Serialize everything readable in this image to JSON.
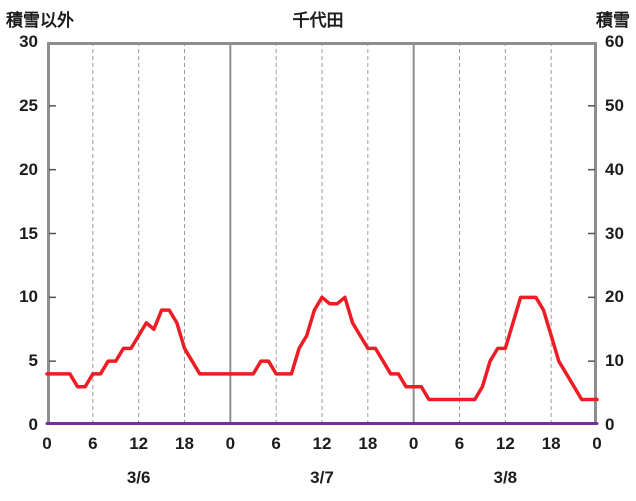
{
  "header": {
    "left_axis_title": "積雪以外",
    "chart_title": "千代田",
    "right_axis_title": "積雪"
  },
  "colors": {
    "background": "#ffffff",
    "frame": "#8e8e8e",
    "grid_dashed": "#9b9b9b",
    "tick": "#555555",
    "text": "#1c1c1c",
    "series_other": "#ee1c25",
    "series_snow": "#7030a0"
  },
  "chart_data": {
    "type": "line",
    "title": "千代田",
    "x_axis": {
      "span_hours": 72,
      "tick_hours": [
        0,
        6,
        12,
        18,
        24,
        30,
        36,
        42,
        48,
        54,
        60,
        66,
        72
      ],
      "tick_labels": [
        "0",
        "6",
        "12",
        "18",
        "0",
        "6",
        "12",
        "18",
        "0",
        "6",
        "12",
        "18",
        "0"
      ],
      "day_boundary_hours": [
        24,
        48
      ],
      "day_labels": [
        {
          "text": "3/6",
          "center_hour": 12
        },
        {
          "text": "3/7",
          "center_hour": 36
        },
        {
          "text": "3/8",
          "center_hour": 60
        }
      ]
    },
    "left_axis": {
      "title": "積雪以外",
      "min": 0,
      "max": 30,
      "ticks": [
        0,
        5,
        10,
        15,
        20,
        25,
        30
      ]
    },
    "right_axis": {
      "title": "積雪",
      "min": 0,
      "max": 60,
      "ticks": [
        0,
        10,
        20,
        30,
        40,
        50,
        60
      ]
    },
    "grid": {
      "vertical_dashed": true,
      "horizontal": false
    },
    "series": [
      {
        "name": "積雪以外",
        "axis": "left",
        "color": "#ee1c25",
        "line_width": 3.5,
        "x_hours": [
          0,
          1,
          2,
          3,
          4,
          5,
          6,
          7,
          8,
          9,
          10,
          11,
          12,
          13,
          14,
          15,
          16,
          17,
          18,
          19,
          20,
          21,
          22,
          23,
          24,
          25,
          26,
          27,
          28,
          29,
          30,
          31,
          32,
          33,
          34,
          35,
          36,
          37,
          38,
          39,
          40,
          41,
          42,
          43,
          44,
          45,
          46,
          47,
          48,
          49,
          50,
          51,
          52,
          53,
          54,
          55,
          56,
          57,
          58,
          59,
          60,
          61,
          62,
          63,
          64,
          65,
          66,
          67,
          68,
          69,
          70,
          71,
          72
        ],
        "values": [
          4,
          4,
          4,
          4,
          3,
          3,
          4,
          4,
          5,
          5,
          6,
          6,
          7,
          8,
          7.5,
          9,
          9,
          8,
          6,
          5,
          4,
          4,
          4,
          4,
          4,
          4,
          4,
          4,
          5,
          5,
          4,
          4,
          4,
          6,
          7,
          9,
          10,
          9.5,
          9.5,
          10,
          8,
          7,
          6,
          6,
          5,
          4,
          4,
          3,
          3,
          3,
          2,
          2,
          2,
          2,
          2,
          2,
          2,
          3,
          5,
          6,
          6,
          8,
          10,
          10,
          10,
          9,
          7,
          5,
          4,
          3,
          2,
          2,
          2
        ]
      },
      {
        "name": "積雪",
        "axis": "right",
        "color": "#7030a0",
        "line_width": 3,
        "x_hours": [
          0,
          72
        ],
        "values": [
          0,
          0
        ]
      }
    ]
  }
}
